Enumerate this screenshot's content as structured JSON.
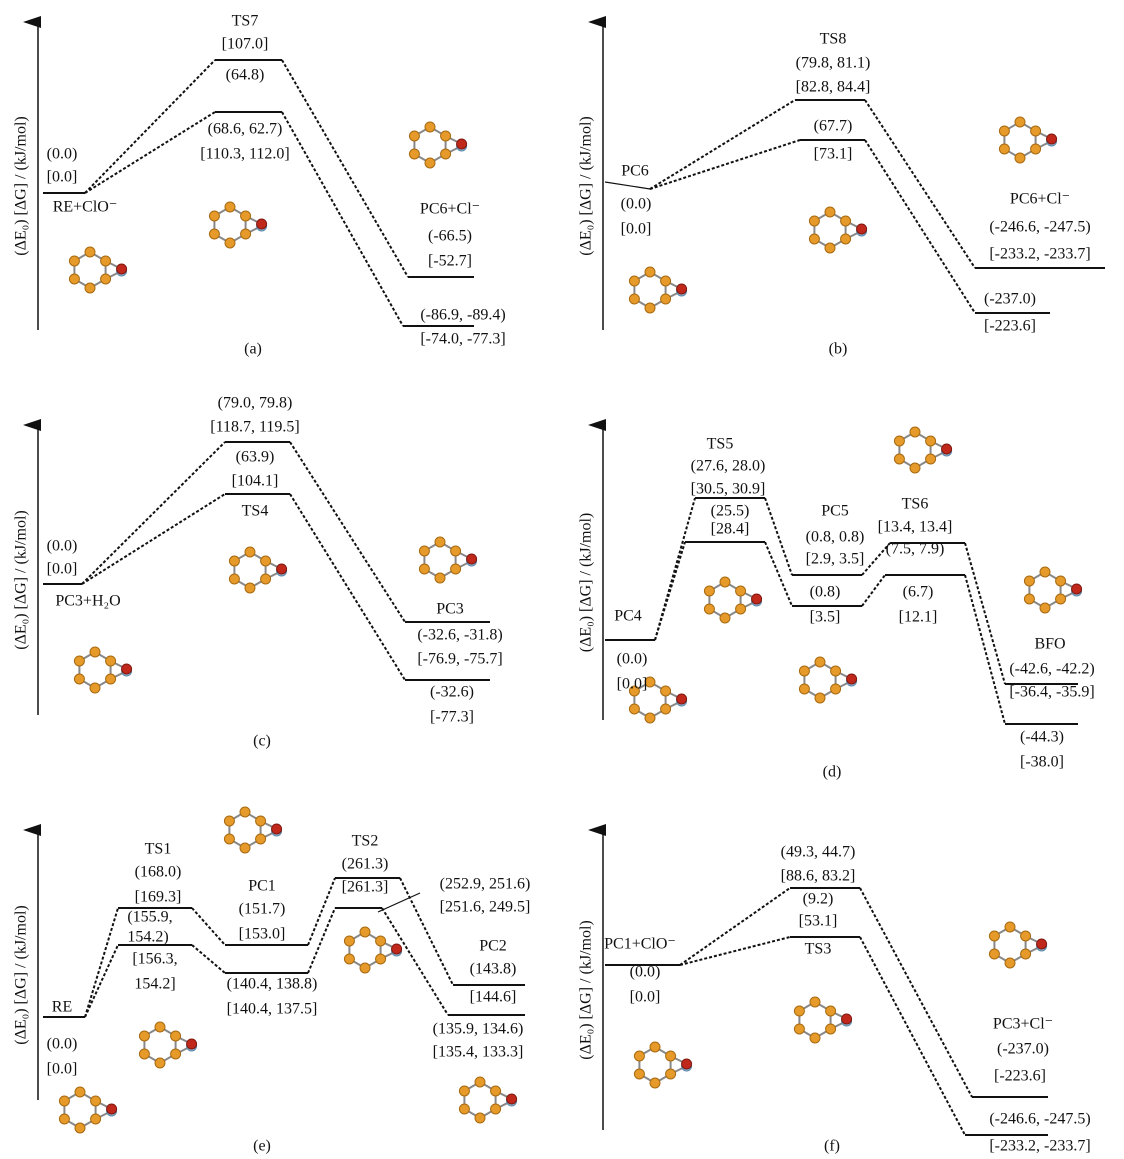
{
  "panels": [
    {
      "label": "(a)",
      "axis_label": "(ΔE₀) [ΔG] / (kJ/mol)",
      "texts": [
        "TS7",
        "[107.0]",
        "(64.8)",
        "(68.6, 62.7)",
        "[110.3, 112.0]",
        "(0.0)",
        "[0.0]",
        "RE+ClO⁻",
        "PC6+Cl⁻",
        "(-66.5)",
        "[-52.7]",
        "(-86.9, -89.4)",
        "[-74.0, -77.3]"
      ]
    },
    {
      "label": "(b)",
      "axis_label": "(ΔE₀) [ΔG] / (kJ/mol)",
      "texts": [
        "TS8",
        "(79.8, 81.1)",
        "[82.8, 84.4]",
        "(67.7)",
        "[73.1]",
        "PC6",
        "(0.0)",
        "[0.0]",
        "PC6+Cl⁻",
        "(-246.6, -247.5)",
        "[-233.2, -233.7]",
        "(-237.0)",
        "[-223.6]"
      ]
    },
    {
      "label": "(c)",
      "axis_label": "(ΔE₀) [ΔG] / (kJ/mol)",
      "texts": [
        "(79.0, 79.8)",
        "[118.7, 119.5]",
        "(63.9)",
        "[104.1]",
        "TS4",
        "(0.0)",
        "[0.0]",
        "PC3+H₂O",
        "PC3",
        "(-32.6, -31.8)",
        "[-76.9, -75.7]",
        "(-32.6)",
        "[-77.3]"
      ]
    },
    {
      "label": "(d)",
      "axis_label": "(ΔE₀) [ΔG] / (kJ/mol)",
      "texts": [
        "TS5",
        "(27.6, 28.0)",
        "[30.5, 30.9]",
        "(25.5)",
        "[28.4]",
        "PC5",
        "(0.8, 0.8)",
        "[2.9, 3.5]",
        "(0.8)",
        "[3.5]",
        "TS6",
        "[13.4, 13.4]",
        "(7.5, 7.9)",
        "(6.7)",
        "[12.1]",
        "PC4",
        "(0.0)",
        "[0.0]",
        "BFO",
        "(-42.6, -42.2)",
        "[-36.4, -35.9]",
        "(-44.3)",
        "[-38.0]"
      ]
    },
    {
      "label": "(e)",
      "axis_label": "(ΔE₀) [ΔG] / (kJ/mol)",
      "texts": [
        "TS1",
        "(168.0)",
        "[169.3]",
        "(155.9,",
        "154.2)",
        "[156.3,",
        "154.2]",
        "PC1",
        "(151.7)",
        "[153.0]",
        "(140.4, 138.8)",
        "[140.4, 137.5]",
        "TS2",
        "(261.3)",
        "[261.3]",
        "(252.9, 251.6)",
        "[251.6, 249.5]",
        "PC2",
        "(143.8)",
        "[144.6]",
        "(135.9, 134.6)",
        "[135.4, 133.3]",
        "RE",
        "(0.0)",
        "[0.0]"
      ]
    },
    {
      "label": "(f)",
      "axis_label": "(ΔE₀) [ΔG] / (kJ/mol)",
      "texts": [
        "(49.3, 44.7)",
        "[88.6, 83.2]",
        "(9.2)",
        "[53.1]",
        "TS3",
        "PC1+ClO⁻",
        "(0.0)",
        "[0.0]",
        "PC3+Cl⁻",
        "(-237.0)",
        "[-223.6]",
        "(-246.6, -247.5)",
        "[-233.2, -233.7]"
      ]
    }
  ]
}
